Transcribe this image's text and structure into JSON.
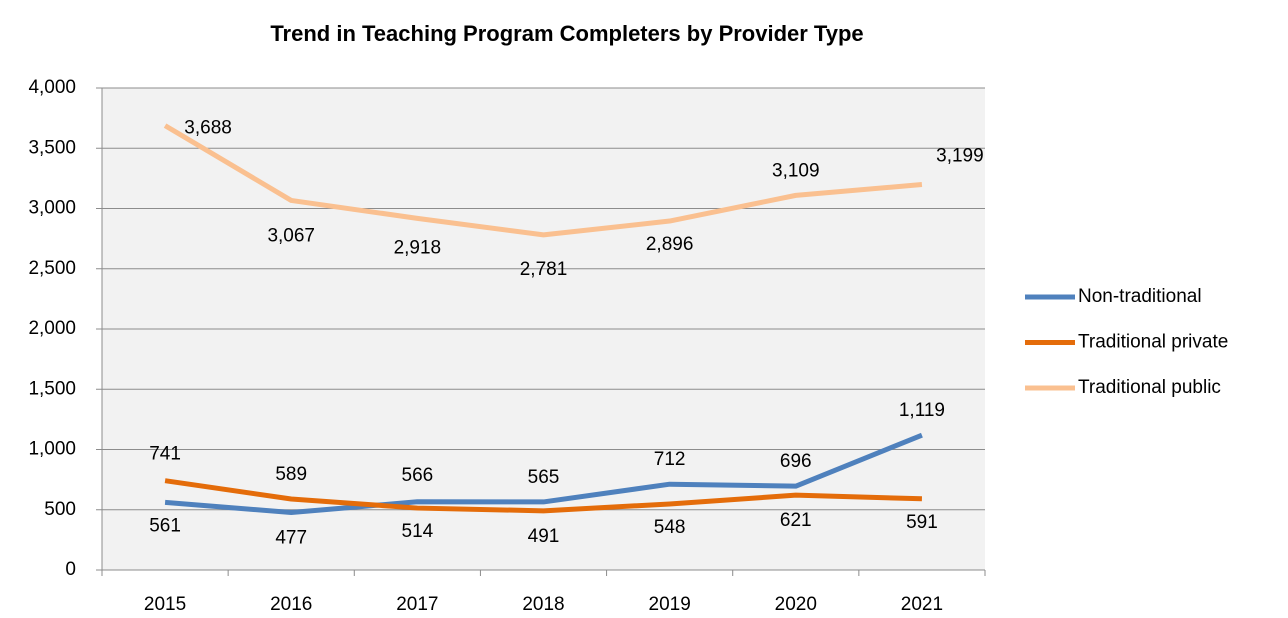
{
  "chart_data": {
    "type": "line",
    "title": "Trend in Teaching Program Completers by Provider Type",
    "categories": [
      "2015",
      "2016",
      "2017",
      "2018",
      "2019",
      "2020",
      "2021"
    ],
    "series": [
      {
        "name": "Non-traditional",
        "color": "#4f81bd",
        "values": [
          561,
          477,
          566,
          565,
          712,
          696,
          1119
        ],
        "value_labels": [
          "561",
          "477",
          "566",
          "565",
          "712",
          "696",
          "1,119"
        ]
      },
      {
        "name": "Traditional private",
        "color": "#e46c0a",
        "values": [
          741,
          589,
          514,
          491,
          548,
          621,
          591
        ],
        "value_labels": [
          "741",
          "589",
          "514",
          "491",
          "548",
          "621",
          "591"
        ]
      },
      {
        "name": "Traditional public",
        "color": "#fac090",
        "values": [
          3688,
          3067,
          2918,
          2781,
          2896,
          3109,
          3199
        ],
        "value_labels": [
          "3,688",
          "3,067",
          "2,918",
          "2,781",
          "2,896",
          "3,109",
          "3,199"
        ]
      }
    ],
    "ylim": [
      0,
      4000
    ],
    "yticks": [
      0,
      500,
      {
        "value": 1000,
        "label": "1,000"
      },
      {
        "value": 1500,
        "label": "1,500"
      },
      {
        "value": 2000,
        "label": "2,000"
      },
      {
        "value": 2500,
        "label": "2,500"
      },
      {
        "value": 3000,
        "label": "3,000"
      },
      {
        "value": 3500,
        "label": "3,500"
      },
      {
        "value": 4000,
        "label": "4,000"
      }
    ],
    "grid": true,
    "legend": "right"
  }
}
